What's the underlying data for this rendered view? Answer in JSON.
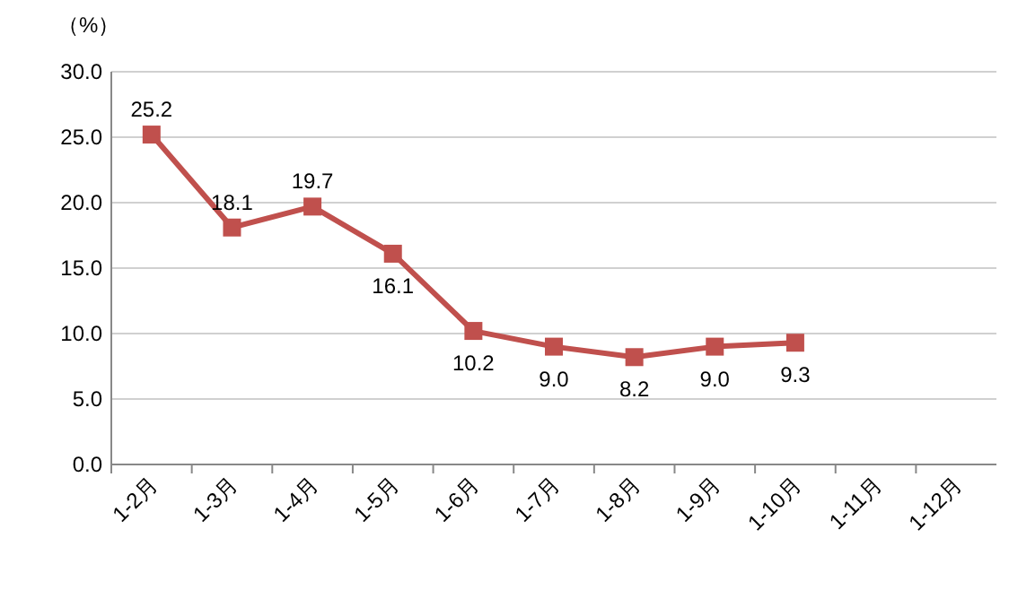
{
  "chart_data": {
    "type": "line",
    "ylabel": "（%）",
    "categories": [
      "1-2月",
      "1-3月",
      "1-4月",
      "1-5月",
      "1-6月",
      "1-7月",
      "1-8月",
      "1-9月",
      "1-10月",
      "1-11月",
      "1-12月"
    ],
    "series": [
      {
        "color": "#c0504d",
        "values": [
          25.2,
          18.1,
          19.7,
          16.1,
          10.2,
          9.0,
          8.2,
          9.0,
          9.3,
          null,
          null
        ],
        "value_labels": [
          "25.2",
          "18.1",
          "19.7",
          "16.1",
          "10.2",
          "9.0",
          "8.2",
          "9.0",
          "9.3",
          null,
          null
        ]
      }
    ],
    "ylim": [
      0,
      30
    ],
    "yticks": [
      {
        "value": 0,
        "label": "0.0"
      },
      {
        "value": 5,
        "label": "5.0"
      },
      {
        "value": 10,
        "label": "10.0"
      },
      {
        "value": 15,
        "label": "15.0"
      },
      {
        "value": 20,
        "label": "20.0"
      },
      {
        "value": 25,
        "label": "25.0"
      },
      {
        "value": 30,
        "label": "30.0"
      }
    ],
    "grid": "y",
    "marker": "square",
    "line_style": "solid"
  }
}
